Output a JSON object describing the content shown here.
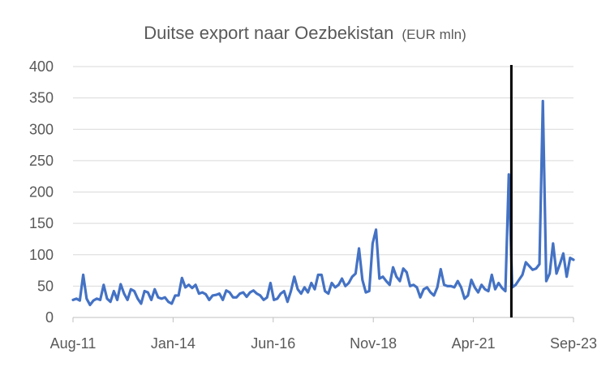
{
  "chart_data": {
    "type": "line",
    "title": "Duitse export naar Oezbekistan",
    "subtitle": "(EUR mln)",
    "xlabel": "",
    "ylabel": "",
    "ylim": [
      0,
      400
    ],
    "yticks": [
      "0",
      "50",
      "100",
      "150",
      "200",
      "250",
      "300",
      "350",
      "400"
    ],
    "xticks": [
      "Aug-11",
      "Jan-14",
      "Jun-16",
      "Nov-18",
      "Apr-21",
      "Sep-23"
    ],
    "grid": true,
    "legend": "none",
    "line_color": "#4472c4",
    "marker_color": "#000000",
    "x_start": "Aug-11",
    "x_end": "Sep-23",
    "marker_at": "Mar-22",
    "series": [
      {
        "values": [
          28,
          30,
          27,
          68,
          30,
          20,
          27,
          30,
          28,
          52,
          30,
          25,
          42,
          28,
          53,
          38,
          28,
          45,
          42,
          30,
          22,
          42,
          40,
          28,
          45,
          32,
          30,
          32,
          25,
          22,
          35,
          35,
          63,
          48,
          52,
          47,
          52,
          38,
          40,
          37,
          28,
          35,
          36,
          38,
          28,
          43,
          40,
          32,
          32,
          38,
          40,
          33,
          40,
          43,
          38,
          35,
          28,
          32,
          55,
          28,
          30,
          38,
          42,
          25,
          42,
          65,
          45,
          38,
          48,
          40,
          55,
          45,
          68,
          68,
          42,
          38,
          55,
          48,
          52,
          62,
          50,
          55,
          65,
          70,
          110,
          60,
          40,
          42,
          118,
          140,
          62,
          65,
          58,
          52,
          80,
          65,
          58,
          78,
          72,
          50,
          52,
          48,
          32,
          45,
          48,
          40,
          35,
          48,
          77,
          52,
          50,
          50,
          48,
          58,
          48,
          30,
          35,
          60,
          48,
          40,
          52,
          45,
          42,
          68,
          45,
          55,
          47,
          42,
          228,
          48,
          52,
          60,
          68,
          88,
          82,
          76,
          78,
          85,
          345,
          58,
          70,
          118,
          70,
          85,
          102,
          65,
          95,
          92
        ]
      }
    ]
  }
}
